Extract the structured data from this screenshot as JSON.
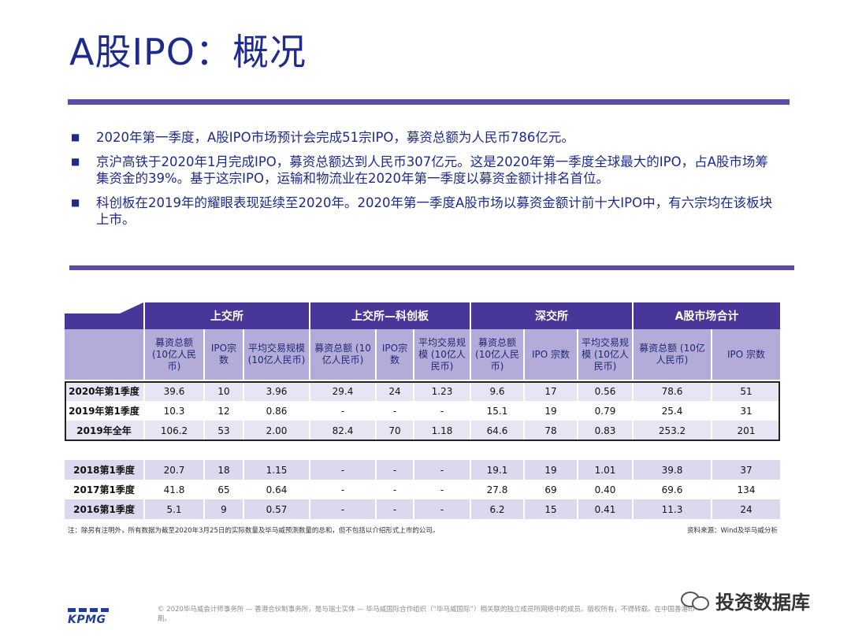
{
  "title": "A股IPO：概况",
  "bullets": [
    "2020年第一季度，A股IPO市场预计会完成51宗IPO，募资总额为人民币786亿元。",
    "京沪高铁于2020年1月完成IPO，募资总额达到人民币307亿元。这是2020年第一季度全球最大的IPO，占A股市场筹集资金的39%。基于这宗IPO，运输和物流业在2020年第一季度以募资金额计排名首位。",
    "科创板在2019年的耀眼表现延续至2020年。2020年第一季度A股市场以募资金额计前十大IPO中，有六宗均在该板块上市。"
  ],
  "table": {
    "groups": [
      "上交所",
      "上交所—科创板",
      "深交所",
      "A股市场合计"
    ],
    "subheaders": [
      "募资总额(10亿人民币)",
      "IPO宗数",
      "平均交易规模 (10亿人民币)",
      "募资总额 (10亿人民币)",
      "IPO宗数",
      "平均交易规模 (10亿人民币)",
      "募资总额 (10亿人民币)",
      "IPO 宗数",
      "平均交易规模 (10亿人民币)",
      "募资总额 (10亿人民币)",
      "IPO 宗数"
    ],
    "rows_top": [
      [
        "2020年第1季度",
        "39.6",
        "10",
        "3.96",
        "29.4",
        "24",
        "1.23",
        "9.6",
        "17",
        "0.56",
        "78.6",
        "51"
      ],
      [
        "2019年第1季度",
        "10.3",
        "12",
        "0.86",
        "-",
        "-",
        "-",
        "15.1",
        "19",
        "0.79",
        "25.4",
        "31"
      ],
      [
        "2019年全年",
        "106.2",
        "53",
        "2.00",
        "82.4",
        "70",
        "1.18",
        "64.6",
        "78",
        "0.83",
        "253.2",
        "201"
      ]
    ],
    "rows_bottom": [
      [
        "2018第1季度",
        "20.7",
        "18",
        "1.15",
        "-",
        "-",
        "-",
        "19.1",
        "19",
        "1.01",
        "39.8",
        "37"
      ],
      [
        "2017第1季度",
        "41.8",
        "65",
        "0.64",
        "-",
        "-",
        "-",
        "27.8",
        "69",
        "0.40",
        "69.6",
        "134"
      ],
      [
        "2016第1季度",
        "5.1",
        "9",
        "0.57",
        "-",
        "-",
        "-",
        "6.2",
        "15",
        "0.41",
        "11.3",
        "24"
      ]
    ]
  },
  "note": "注：除另有注明外，所有数据为截至2020年3月25日的实际数量及毕马威预测数量的总和，但不包括以介绍形式上市的公司。",
  "source": "资料来源：Wind及毕马威分析",
  "footer": {
    "logo": "KPMG",
    "copyright": "© 2020毕马威会计师事务所 — 香港合伙制事务所，是与瑞士实体 — 毕马威国际合作组织（“毕马威国际”）相关联的独立成员所网络中的成员。版权所有，不得转载。在中国香港印刷。"
  },
  "watermark": {
    "text": "投资数据库",
    "icon": "wechat-icon"
  },
  "colors": {
    "accent": "#483698",
    "subheader": "#b4acd8",
    "title": "#1e2a8c"
  }
}
